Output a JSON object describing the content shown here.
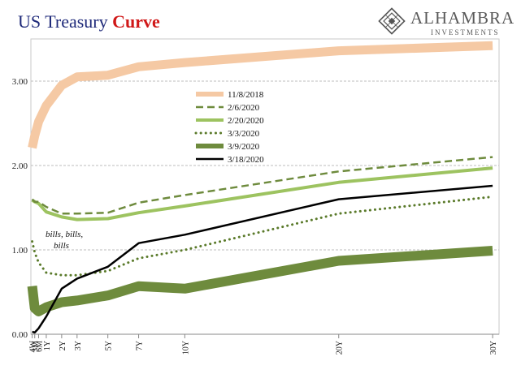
{
  "header": {
    "title_main": "US Treasury",
    "title_accent": "Curve"
  },
  "branding": {
    "name": "ALHAMBRA",
    "sub": "INVESTMENTS",
    "logo_icon": "alhambra-diamond-logo-icon"
  },
  "colors": {
    "title_main": "#1f2a7a",
    "title_accent": "#d01818",
    "grid": "#bdbdbd",
    "axis": "#888888"
  },
  "chart_data": {
    "type": "line",
    "title": "US Treasury Curve",
    "xlabel": "",
    "ylabel": "",
    "ylim": [
      0,
      3.5
    ],
    "yticks": [
      0.0,
      1.0,
      2.0,
      3.0
    ],
    "ytick_labels": [
      "0.00",
      "1.00",
      "2.00",
      "3.00"
    ],
    "grid": true,
    "legend_position": "upper-middle",
    "x_categories": [
      "4W",
      "3M",
      "6M",
      "1Y",
      "2Y",
      "3Y",
      "5Y",
      "7Y",
      "10Y",
      "20Y",
      "30Y"
    ],
    "x_positions_months": [
      1,
      3,
      6,
      12,
      24,
      36,
      60,
      84,
      120,
      240,
      360
    ],
    "series": [
      {
        "name": "11/8/2018",
        "color": "#f5c9a4",
        "style": "solid",
        "width": 11,
        "values": [
          2.21,
          2.35,
          2.52,
          2.71,
          2.95,
          3.05,
          3.07,
          3.17,
          3.22,
          3.36,
          3.42
        ]
      },
      {
        "name": "2/6/2020",
        "color": "#6e8b3d",
        "style": "dashed",
        "width": 2.5,
        "values": [
          1.6,
          1.57,
          1.57,
          1.51,
          1.43,
          1.43,
          1.44,
          1.56,
          1.65,
          1.93,
          2.1
        ]
      },
      {
        "name": "2/20/2020",
        "color": "#9dc360",
        "style": "solid",
        "width": 4,
        "values": [
          1.59,
          1.57,
          1.55,
          1.45,
          1.39,
          1.36,
          1.37,
          1.44,
          1.52,
          1.8,
          1.97
        ]
      },
      {
        "name": "3/3/2020",
        "color": "#5a7a2a",
        "style": "dotted",
        "width": 3,
        "values": [
          1.1,
          0.97,
          0.85,
          0.73,
          0.7,
          0.7,
          0.75,
          0.9,
          1.0,
          1.43,
          1.63
        ]
      },
      {
        "name": "3/9/2020",
        "color": "#6e8b3d",
        "style": "solid",
        "width": 12,
        "values": [
          0.57,
          0.31,
          0.27,
          0.32,
          0.38,
          0.4,
          0.46,
          0.57,
          0.54,
          0.87,
          0.99
        ]
      },
      {
        "name": "3/18/2020",
        "color": "#000000",
        "style": "solid",
        "width": 2.5,
        "values": [
          0.03,
          0.02,
          0.07,
          0.21,
          0.54,
          0.66,
          0.8,
          1.08,
          1.18,
          1.6,
          1.76
        ]
      }
    ],
    "annotations": [
      {
        "lines": [
          "bills, bills,",
          "bills"
        ]
      }
    ]
  }
}
